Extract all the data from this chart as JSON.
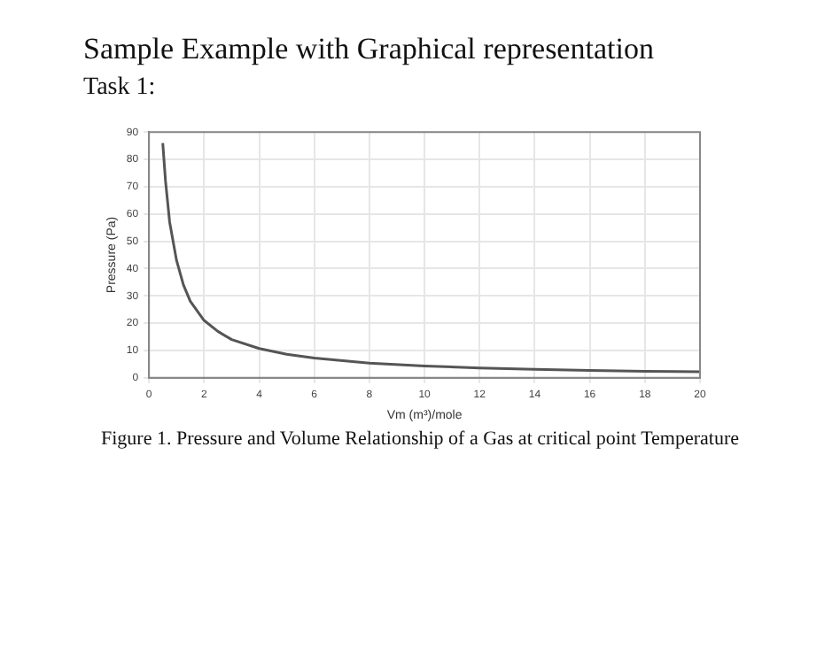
{
  "chart_data": {
    "type": "line",
    "title": "Sample Example with Graphical representation",
    "subtitle": "Task 1:",
    "annotations": [
      "Figure 1. Pressure and Volume Relationship of a Gas at critical point Temperature"
    ],
    "xlabel": "Vm (m³)/mole",
    "ylabel": "Pressure (Pa)",
    "series": [
      {
        "color": "#555555",
        "x": [
          0.5,
          0.6,
          0.75,
          1,
          1.25,
          1.5,
          2,
          2.5,
          3,
          4,
          5,
          6,
          8,
          10,
          12,
          14,
          16,
          18,
          20
        ],
        "values": [
          86,
          72,
          57,
          43,
          34,
          28,
          21,
          17,
          14,
          10.7,
          8.6,
          7.2,
          5.4,
          4.3,
          3.6,
          3.1,
          2.7,
          2.4,
          2.2
        ]
      }
    ],
    "xlim": [
      0,
      20
    ],
    "xticks": [
      0,
      2,
      4,
      6,
      8,
      10,
      12,
      14,
      16,
      18,
      20
    ],
    "ylim": [
      0,
      90
    ],
    "yticks": [
      0,
      10,
      20,
      30,
      40,
      50,
      60,
      70,
      80,
      90
    ],
    "grid": true,
    "legend": false,
    "marker": "none",
    "line_style": "solid"
  }
}
